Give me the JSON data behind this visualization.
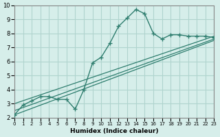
{
  "xlabel": "Humidex (Indice chaleur)",
  "xlim": [
    0,
    23
  ],
  "ylim": [
    2,
    10
  ],
  "xticks": [
    0,
    1,
    2,
    3,
    4,
    5,
    6,
    7,
    8,
    9,
    10,
    11,
    12,
    13,
    14,
    15,
    16,
    17,
    18,
    19,
    20,
    21,
    22,
    23
  ],
  "yticks": [
    2,
    3,
    4,
    5,
    6,
    7,
    8,
    9,
    10
  ],
  "line_color": "#2e7d6e",
  "bg_color": "#d6eeea",
  "plot_bg": "#d6eeea",
  "grid_color": "#b0d4ce",
  "main_x": [
    0,
    1,
    2,
    3,
    4,
    5,
    6,
    7,
    8,
    9,
    10,
    11,
    12,
    13,
    14,
    15,
    16,
    17,
    18,
    19,
    20,
    21,
    22,
    23
  ],
  "main_y": [
    2.2,
    2.9,
    3.2,
    3.5,
    3.5,
    3.3,
    3.3,
    2.6,
    4.0,
    5.9,
    6.3,
    7.3,
    8.5,
    9.1,
    9.7,
    9.4,
    8.0,
    7.6,
    7.9,
    7.9,
    7.8,
    7.8,
    7.8,
    7.7
  ],
  "line2_x": [
    0,
    23
  ],
  "line2_y": [
    2.5,
    7.6
  ],
  "line3_x": [
    0,
    23
  ],
  "line3_y": [
    3.0,
    7.8
  ],
  "line4_x": [
    0,
    23
  ],
  "line4_y": [
    2.2,
    7.5
  ]
}
